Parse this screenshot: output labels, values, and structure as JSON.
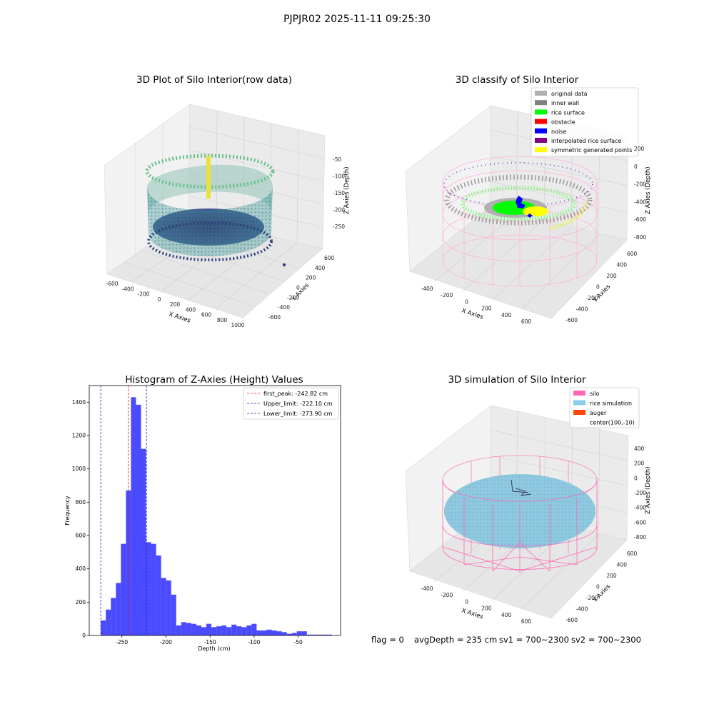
{
  "suptitle": "PJPJR02 2025-11-11 09:25:30",
  "panels": {
    "raw": {
      "title": "3D Plot of Silo Interior(row data)",
      "xlabel": "X Axies",
      "ylabel": "Y Axies",
      "zlabel": "Z Axies (Depth)",
      "xticks": [
        "-600",
        "-400",
        "-200",
        "0",
        "200",
        "400",
        "600",
        "800",
        "1000"
      ],
      "yticks": [
        "-600",
        "-400",
        "-200",
        "0",
        "200",
        "400",
        "600"
      ],
      "zticks": [
        "-50",
        "-100",
        "-150",
        "-200",
        "-250"
      ]
    },
    "classify": {
      "title": "3D classify of Silo Interior",
      "xlabel": "X Axies",
      "ylabel": "Y Axies",
      "zlabel": "Z Axies (Depth)",
      "xticks": [
        "-400",
        "-200",
        "0",
        "200",
        "400",
        "600"
      ],
      "yticks": [
        "-600",
        "-400",
        "-200",
        "0",
        "200",
        "400",
        "600"
      ],
      "zticks": [
        "200",
        "0",
        "-200",
        "-400",
        "-600",
        "-800"
      ],
      "legend": [
        {
          "label": "original data",
          "color": "#b0b0b0"
        },
        {
          "label": "inner wall",
          "color": "#808080"
        },
        {
          "label": "rice surface",
          "color": "#00ff00"
        },
        {
          "label": "obstacle",
          "color": "#ff0000"
        },
        {
          "label": "noise",
          "color": "#0000ff"
        },
        {
          "label": "interpolated rice surface",
          "color": "#800080"
        },
        {
          "label": "symmetric generated points",
          "color": "#ffff00"
        }
      ]
    },
    "simulation": {
      "title": "3D simulation of Silo Interior",
      "xlabel": "X Axies",
      "ylabel": "Y Axies",
      "zlabel": "Z Axies (Depth)",
      "xticks": [
        "-400",
        "-200",
        "0",
        "200",
        "400",
        "600"
      ],
      "yticks": [
        "-600",
        "-400",
        "-200",
        "0",
        "200",
        "400",
        "600"
      ],
      "zticks": [
        "400",
        "200",
        "0",
        "-200",
        "-400",
        "-600",
        "-800"
      ],
      "legend": [
        {
          "label": "silo",
          "color": "#ff69b4"
        },
        {
          "label": "rice simulation",
          "color": "#87ceeb"
        },
        {
          "label": "auger",
          "color": "#ff4500"
        },
        {
          "label": "center(100,-10)",
          "color": ""
        }
      ]
    }
  },
  "status": {
    "flag": "flag = 0",
    "avg": "avgDepth = 235 cm",
    "sv1": "sv1 = 700~2300",
    "sv2": "sv2 = 700~2300"
  },
  "colors": {
    "bar": "#4a4aff",
    "first_peak": "#e0190f",
    "limits": "#1f1fb8"
  },
  "chart_data": {
    "type": "bar",
    "title": "Histogram of Z-Axies (Height) Values",
    "xlabel": "Depth (cm)",
    "ylabel": "Frequency",
    "xlim": [
      -287,
      -2
    ],
    "ylim": [
      0,
      1500
    ],
    "xticks": [
      -250,
      -200,
      -150,
      -100,
      -50
    ],
    "yticks": [
      0,
      200,
      400,
      600,
      800,
      1000,
      1200,
      1400
    ],
    "bin_width": 5.7,
    "bin_starts": [
      -273.9,
      -268.2,
      -262.5,
      -256.8,
      -251.1,
      -245.4,
      -239.7,
      -234.0,
      -228.3,
      -222.6,
      -216.9,
      -211.2,
      -205.5,
      -199.8,
      -194.1,
      -188.4,
      -182.7,
      -177.0,
      -171.3,
      -165.6,
      -159.9,
      -154.2,
      -148.5,
      -142.8,
      -137.1,
      -131.4,
      -125.7,
      -120.0,
      -114.3,
      -108.6,
      -102.9,
      -97.2,
      -91.5,
      -85.8,
      -80.1,
      -74.4,
      -68.7,
      -63.0,
      -57.3,
      -51.6,
      -45.9,
      -40.2,
      -34.5,
      -28.8,
      -23.1,
      -17.4
    ],
    "values": [
      90,
      155,
      225,
      315,
      550,
      870,
      1430,
      1385,
      1120,
      560,
      550,
      480,
      345,
      330,
      245,
      60,
      80,
      75,
      70,
      60,
      50,
      70,
      50,
      55,
      60,
      50,
      65,
      55,
      50,
      60,
      70,
      30,
      30,
      35,
      30,
      25,
      20,
      10,
      15,
      25,
      25,
      5,
      5,
      5,
      5,
      5
    ],
    "lines": [
      {
        "label": "first_peak: -242.82 cm",
        "x": -242.82,
        "color": "#e0190f"
      },
      {
        "label": "Upper_limit: -222.10 cm",
        "x": -222.1,
        "color": "#1f1fb8"
      },
      {
        "label": "Lower_limit: -273.90 cm",
        "x": -273.9,
        "color": "#1f1fb8"
      }
    ]
  }
}
